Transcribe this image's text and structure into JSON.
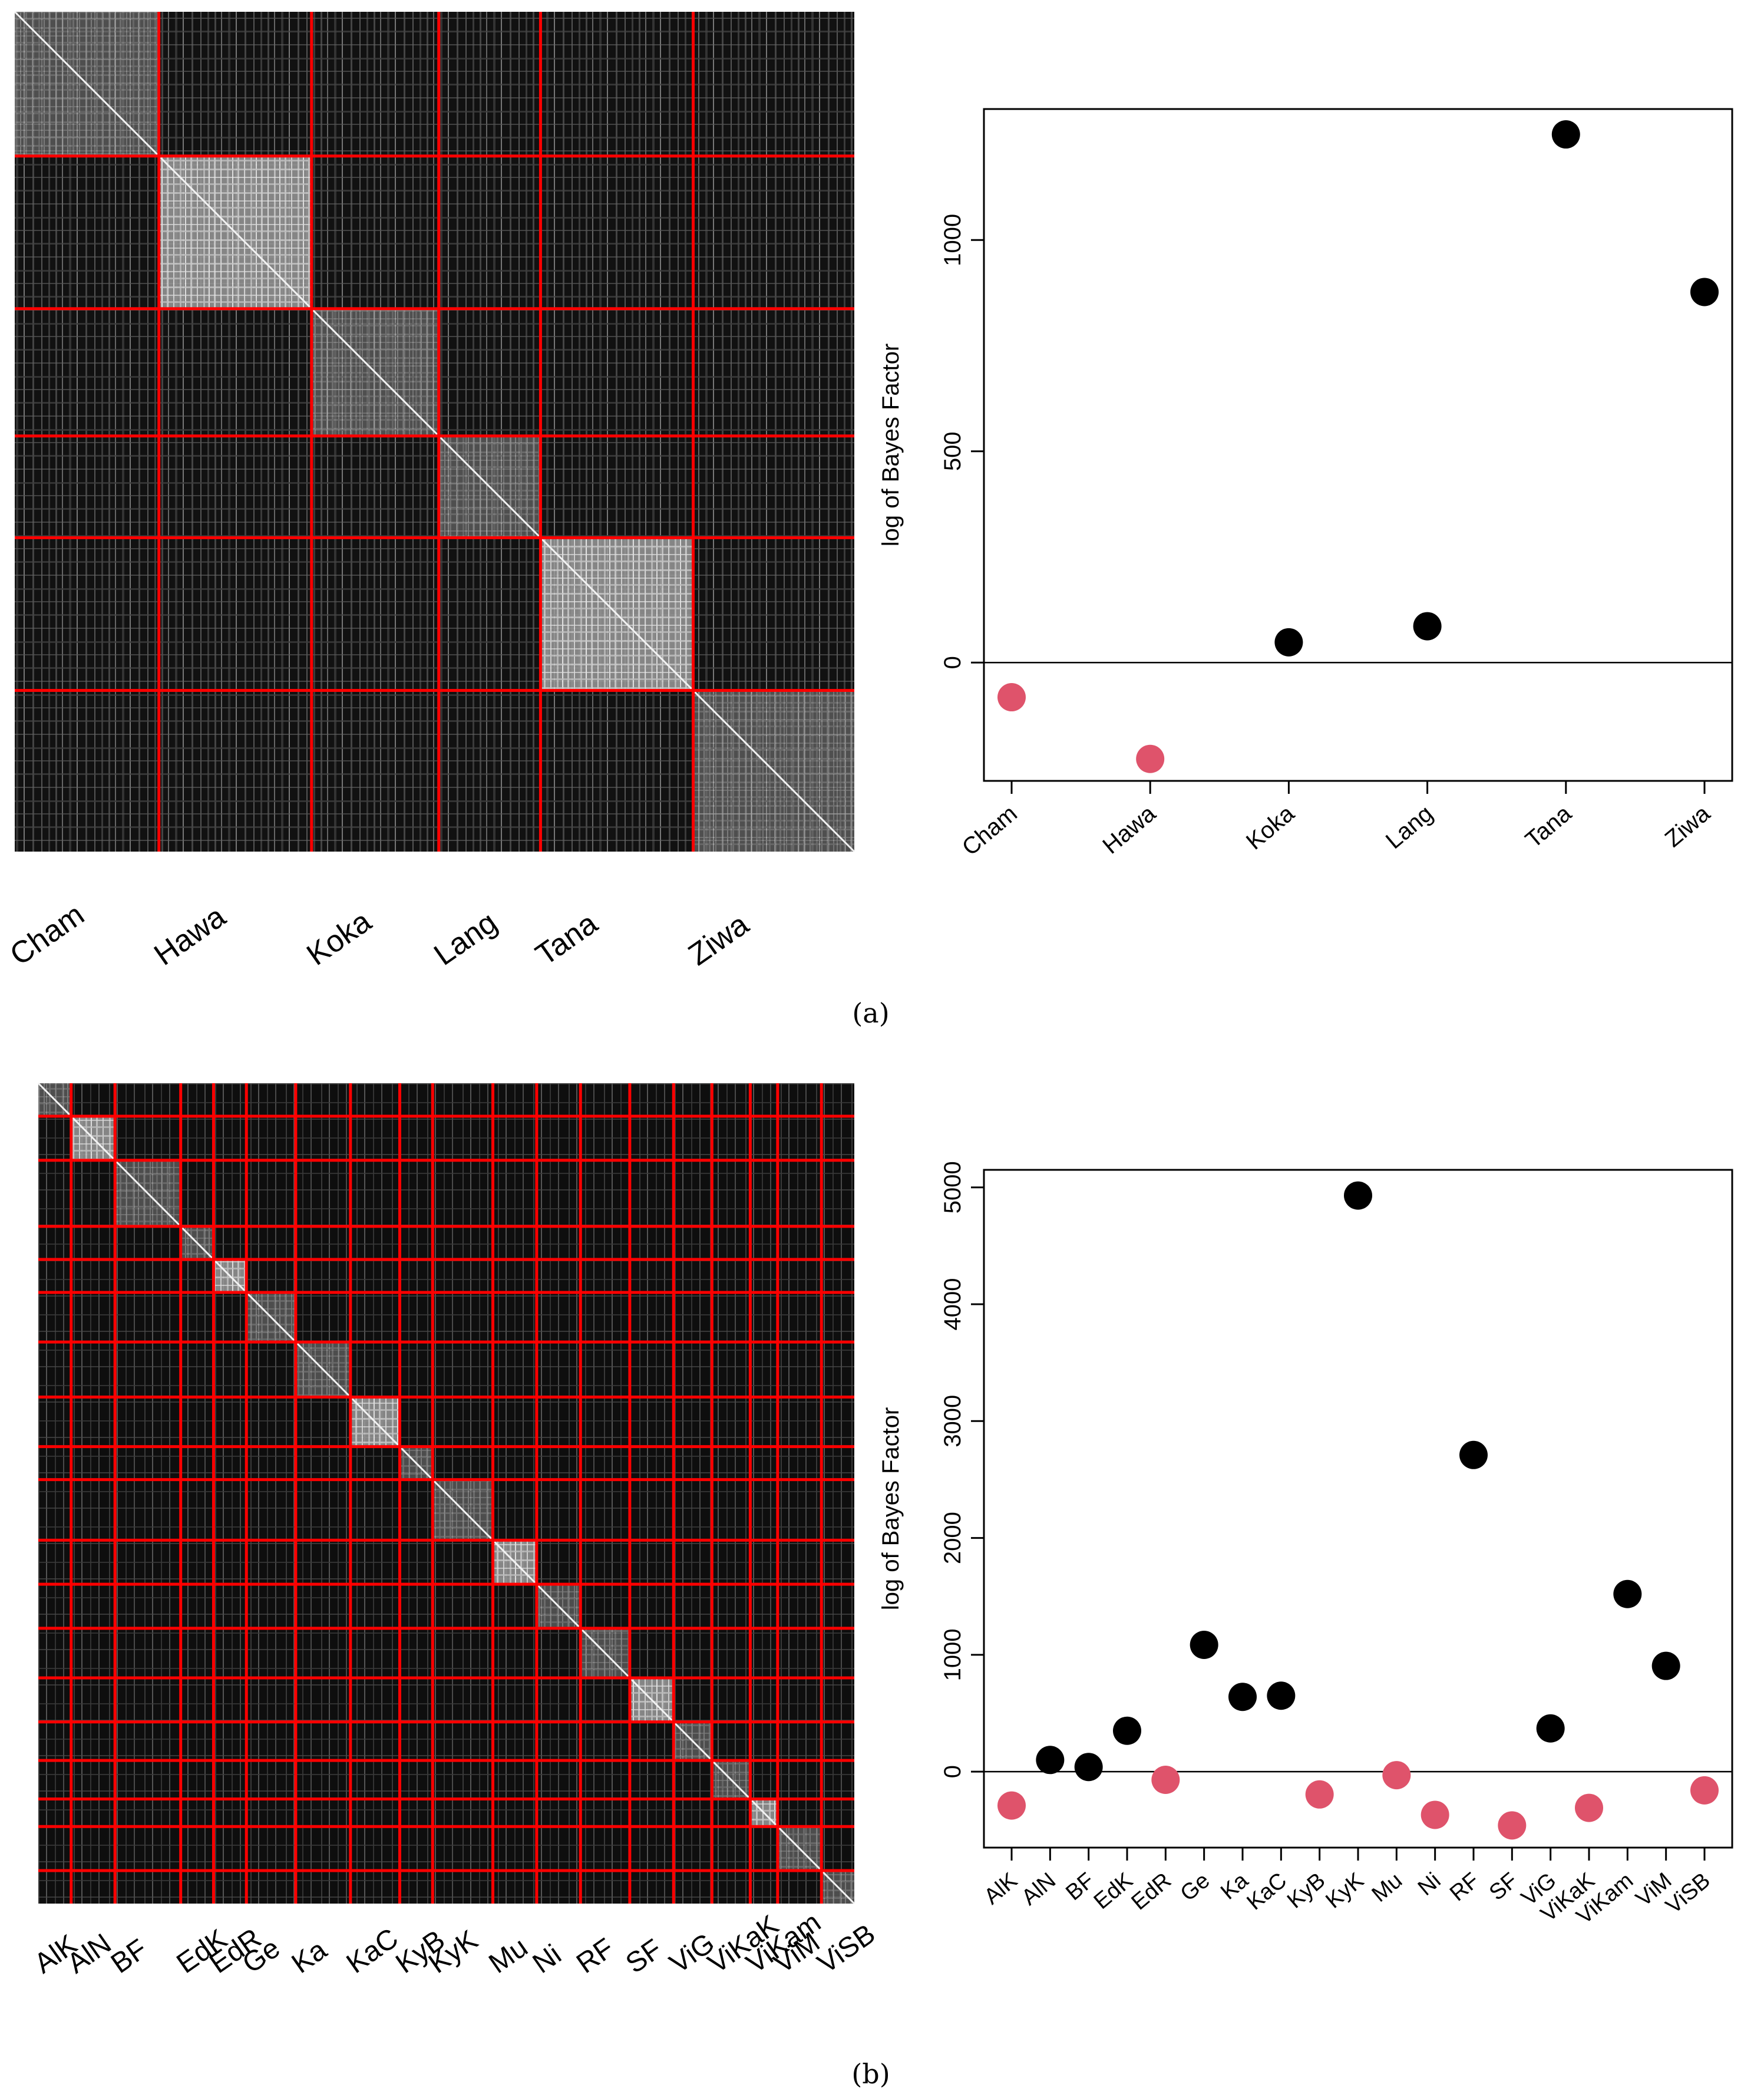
{
  "panels": [
    {
      "label": "(a)",
      "heatmap": {
        "groups": [
          "Cham",
          "Hawa",
          "Koka",
          "Lang",
          "Tana",
          "Ziwa"
        ],
        "group_sizes": [
          17,
          18,
          15,
          12,
          18,
          19
        ],
        "line_color": "#ff0000"
      },
      "chart_data": {
        "type": "scatter",
        "categories": [
          "Cham",
          "Hawa",
          "Koka",
          "Lang",
          "Tana",
          "Ziwa"
        ],
        "values": [
          -82,
          -228,
          48,
          86,
          1250,
          877
        ],
        "ylabel": "log of Bayes Factor",
        "xlabel": "",
        "ylim": [
          -280,
          1310
        ],
        "yticks": [
          0,
          500,
          1000
        ],
        "reference_line": 0,
        "positive_color": "#000000",
        "negative_color": "#df536b"
      }
    },
    {
      "label": "(b)",
      "heatmap": {
        "groups": [
          "AlK",
          "AlN",
          "BF",
          "EdK",
          "EdR",
          "Ge",
          "Ka",
          "KaC",
          "KyB",
          "KyK",
          "Mu",
          "Ni",
          "RF",
          "SF",
          "ViG",
          "ViKaK",
          "ViKam",
          "ViM",
          "ViSB"
        ],
        "group_sizes": [
          6,
          8,
          12,
          6,
          6,
          9,
          10,
          9,
          6,
          11,
          8,
          8,
          9,
          8,
          7,
          7,
          5,
          8,
          6
        ],
        "line_color": "#ff0000"
      },
      "chart_data": {
        "type": "scatter",
        "categories": [
          "AlK",
          "AlN",
          "BF",
          "EdK",
          "EdR",
          "Ge",
          "Ka",
          "KaC",
          "KyB",
          "KyK",
          "Mu",
          "Ni",
          "RF",
          "SF",
          "ViG",
          "ViKaK",
          "ViKam",
          "ViM",
          "ViSB"
        ],
        "values": [
          -290,
          100,
          40,
          350,
          -70,
          1085,
          640,
          650,
          -195,
          4930,
          -30,
          -370,
          2710,
          -460,
          370,
          -310,
          1520,
          905,
          -160
        ],
        "ylabel": "log of Bayes Factor",
        "xlabel": "",
        "ylim": [
          -650,
          5150
        ],
        "yticks": [
          0,
          1000,
          2000,
          3000,
          4000,
          5000
        ],
        "reference_line": 0,
        "positive_color": "#000000",
        "negative_color": "#df536b"
      }
    }
  ]
}
